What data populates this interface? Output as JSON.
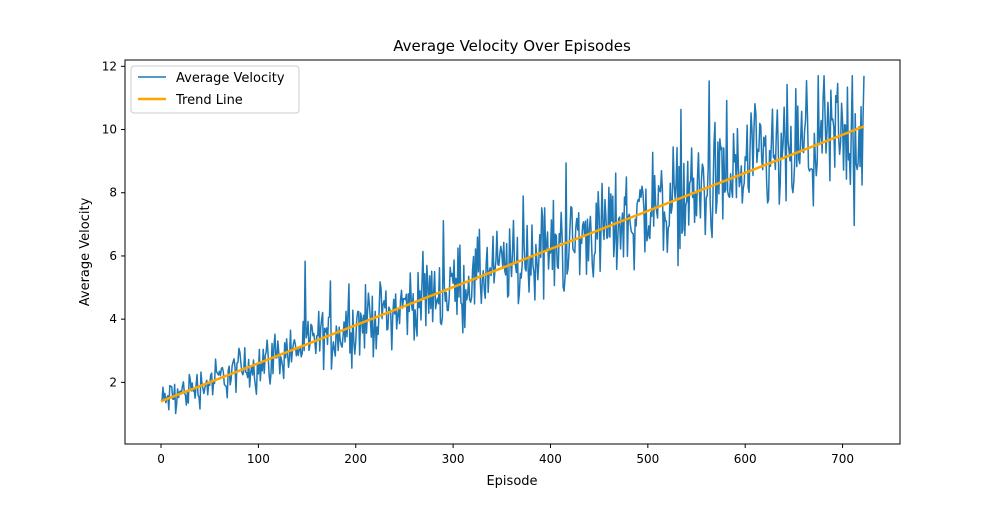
{
  "chart_data": {
    "type": "line",
    "title": "Average Velocity Over Episodes",
    "xlabel": "Episode",
    "ylabel": "Average Velocity",
    "xlim": [
      -37,
      759
    ],
    "ylim": [
      0.05,
      12.2
    ],
    "xticks": [
      0,
      100,
      200,
      300,
      400,
      500,
      600,
      700
    ],
    "yticks": [
      2,
      4,
      6,
      8,
      10,
      12
    ],
    "grid": false,
    "legend_position": "top-left",
    "series": [
      {
        "name": "Average Velocity",
        "color": "#1f77b4",
        "style": "noisy-line",
        "x_start": 0,
        "x_end": 722,
        "points": 723,
        "trend_intercept": 1.4,
        "trend_slope": 0.01205,
        "noise_amplitude_start": 0.6,
        "noise_amplitude_end": 2.4,
        "min_value": 0.6,
        "max_value": 11.7
      },
      {
        "name": "Trend Line",
        "color": "#ffa500",
        "style": "line",
        "x": [
          0,
          722
        ],
        "y": [
          1.4,
          10.1
        ]
      }
    ]
  }
}
